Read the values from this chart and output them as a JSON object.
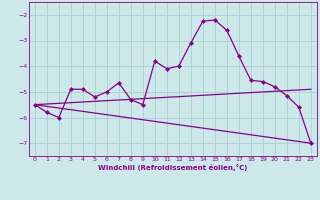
{
  "xlabel": "Windchill (Refroidissement éolien,°C)",
  "background_color": "#cce8e8",
  "line_color": "#880088",
  "grid_color": "#aad4d4",
  "xlim": [
    -0.5,
    23.5
  ],
  "ylim": [
    -7.5,
    -1.5
  ],
  "yticks": [
    -7,
    -6,
    -5,
    -4,
    -3,
    -2
  ],
  "xticks": [
    0,
    1,
    2,
    3,
    4,
    5,
    6,
    7,
    8,
    9,
    10,
    11,
    12,
    13,
    14,
    15,
    16,
    17,
    18,
    19,
    20,
    21,
    22,
    23
  ],
  "curve1_x": [
    0,
    1,
    2,
    3,
    4,
    5,
    6,
    7,
    8,
    9,
    10,
    11,
    12,
    13,
    14,
    15,
    16,
    17,
    18,
    19,
    20,
    21,
    22,
    23
  ],
  "curve1_y": [
    -5.5,
    -5.8,
    -6.0,
    -4.9,
    -4.9,
    -5.2,
    -5.0,
    -4.65,
    -5.3,
    -5.5,
    -3.8,
    -4.1,
    -4.0,
    -3.1,
    -2.25,
    -2.2,
    -2.6,
    -3.6,
    -4.55,
    -4.6,
    -4.8,
    -5.15,
    -5.6,
    -7.0
  ],
  "curve2_x": [
    0,
    23
  ],
  "curve2_y": [
    -5.5,
    -4.9
  ],
  "curve3_x": [
    0,
    23
  ],
  "curve3_y": [
    -5.5,
    -7.0
  ]
}
